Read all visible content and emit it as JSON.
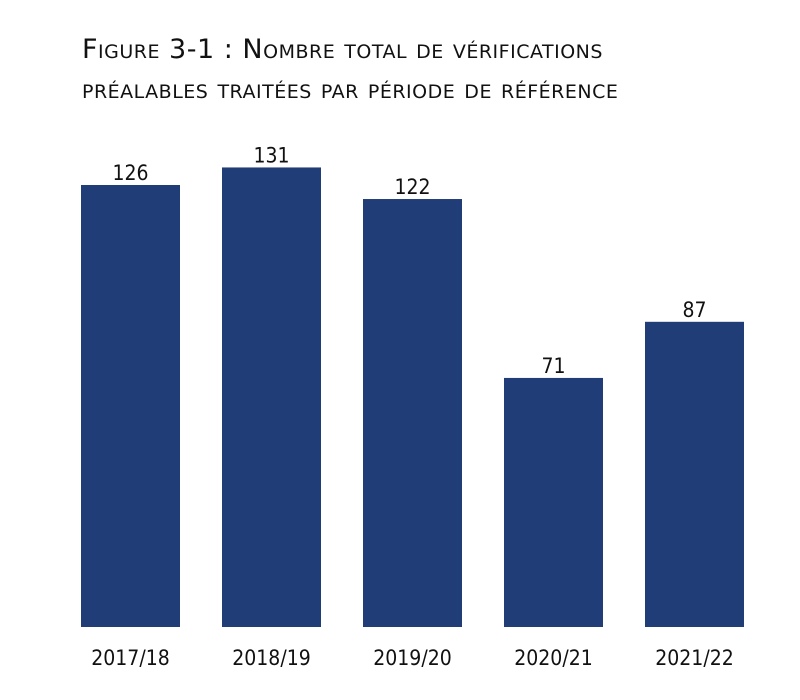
{
  "chart_data": {
    "type": "bar",
    "title": "Figure 3-1 : Nombre total de vérifications préalables traitées par période de référence",
    "categories": [
      "2017/18",
      "2018/19",
      "2019/20",
      "2020/21",
      "2021/22"
    ],
    "values": [
      126,
      131,
      122,
      71,
      87
    ],
    "color": "#213d78"
  }
}
